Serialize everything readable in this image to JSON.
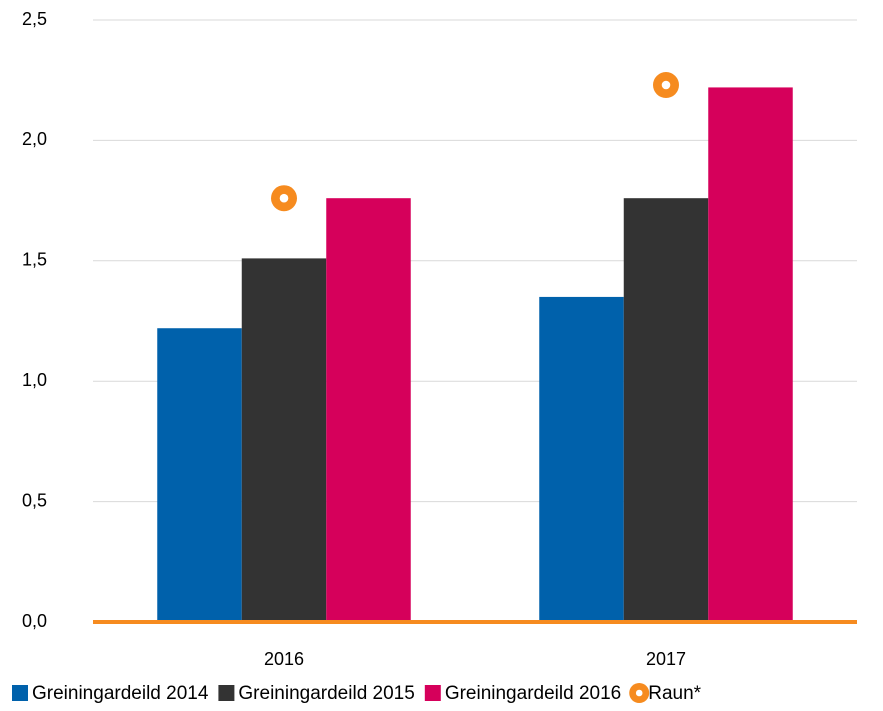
{
  "chart_data": {
    "type": "bar",
    "categories": [
      "2016",
      "2017"
    ],
    "series": [
      {
        "name": "Greiningardeild 2014",
        "type": "bar",
        "color": "#0061ab",
        "values": [
          1.22,
          1.35
        ]
      },
      {
        "name": "Greiningardeild 2015",
        "type": "bar",
        "color": "#333333",
        "values": [
          1.51,
          1.76
        ]
      },
      {
        "name": "Greiningardeild 2016",
        "type": "bar",
        "color": "#d6005b",
        "values": [
          1.76,
          2.22
        ]
      },
      {
        "name": "Raun*",
        "type": "scatter",
        "color": "#f68b1f",
        "values": [
          1.76,
          2.23
        ]
      }
    ],
    "ylim": [
      0,
      2.5
    ],
    "yticks": [
      {
        "value": 0,
        "label": "0,0"
      },
      {
        "value": 0.5,
        "label": "0,5"
      },
      {
        "value": 1,
        "label": "1,0"
      },
      {
        "value": 1.5,
        "label": "1,5"
      },
      {
        "value": 2,
        "label": "2,0"
      },
      {
        "value": 2.5,
        "label": "2,5"
      }
    ],
    "grid": true,
    "axis_color": "#f68b1f",
    "legend": "bottom"
  }
}
